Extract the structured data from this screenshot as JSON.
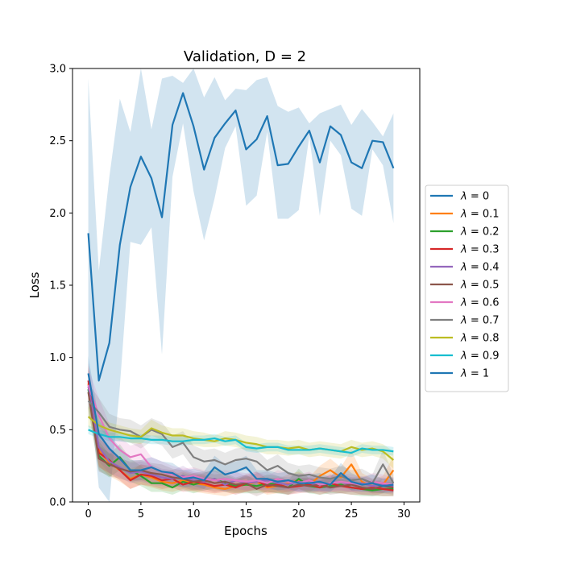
{
  "chart_data": {
    "type": "line",
    "title": "Validation, D = 2",
    "xlabel": "Epochs",
    "ylabel": "Loss",
    "xlim": [
      -1.5,
      31.5
    ],
    "ylim": [
      0.0,
      3.0
    ],
    "xticks": [
      0,
      5,
      10,
      15,
      20,
      25,
      30
    ],
    "xtick_labels": [
      "0",
      "5",
      "10",
      "15",
      "20",
      "25",
      "30"
    ],
    "yticks": [
      0.0,
      0.5,
      1.0,
      1.5,
      2.0,
      2.5,
      3.0
    ],
    "ytick_labels": [
      "0.0",
      "0.5",
      "1.0",
      "1.5",
      "2.0",
      "2.5",
      "3.0"
    ],
    "legend_position": "right-outside",
    "legend_symbol": "λ",
    "x": [
      0,
      1,
      2,
      3,
      4,
      5,
      6,
      7,
      8,
      9,
      10,
      11,
      12,
      13,
      14,
      15,
      16,
      17,
      18,
      19,
      20,
      21,
      22,
      23,
      24,
      25,
      26,
      27,
      28,
      29
    ],
    "series": [
      {
        "name": "λ = 0",
        "label_value": "0",
        "color": "#1f77b4",
        "values": [
          1.86,
          0.84,
          1.1,
          1.78,
          2.18,
          2.39,
          2.24,
          1.97,
          2.61,
          2.83,
          2.6,
          2.3,
          2.52,
          2.62,
          2.71,
          2.44,
          2.51,
          2.67,
          2.33,
          2.34,
          2.46,
          2.57,
          2.35,
          2.6,
          2.54,
          2.35,
          2.31,
          2.5,
          2.49,
          2.31
        ],
        "lower": [
          0.85,
          0.1,
          0.0,
          0.8,
          1.8,
          1.78,
          1.9,
          1.02,
          2.25,
          2.62,
          2.15,
          1.81,
          2.1,
          2.45,
          2.6,
          2.05,
          2.12,
          2.56,
          1.96,
          1.96,
          2.02,
          2.53,
          1.98,
          2.5,
          2.4,
          2.03,
          1.98,
          2.44,
          2.33,
          1.93
        ],
        "upper": [
          2.93,
          1.6,
          2.25,
          2.79,
          2.56,
          3.0,
          2.58,
          2.93,
          2.95,
          2.9,
          3.03,
          2.8,
          2.94,
          2.78,
          2.86,
          2.85,
          2.92,
          2.94,
          2.74,
          2.7,
          2.73,
          2.62,
          2.69,
          2.72,
          2.75,
          2.61,
          2.72,
          2.63,
          2.53,
          2.69
        ]
      },
      {
        "name": "λ = 0.1",
        "label_value": "0.1",
        "color": "#ff7f0e",
        "values": [
          0.82,
          0.36,
          0.27,
          0.22,
          0.16,
          0.19,
          0.17,
          0.14,
          0.13,
          0.15,
          0.13,
          0.12,
          0.1,
          0.09,
          0.11,
          0.12,
          0.14,
          0.1,
          0.11,
          0.13,
          0.15,
          0.12,
          0.18,
          0.22,
          0.17,
          0.26,
          0.14,
          0.11,
          0.12,
          0.22
        ],
        "lower": [
          0.7,
          0.25,
          0.18,
          0.14,
          0.09,
          0.12,
          0.1,
          0.08,
          0.07,
          0.09,
          0.07,
          0.06,
          0.05,
          0.04,
          0.06,
          0.07,
          0.08,
          0.05,
          0.06,
          0.07,
          0.09,
          0.07,
          0.11,
          0.14,
          0.1,
          0.16,
          0.08,
          0.06,
          0.06,
          0.12
        ],
        "upper": [
          0.94,
          0.47,
          0.36,
          0.3,
          0.23,
          0.26,
          0.24,
          0.2,
          0.19,
          0.21,
          0.19,
          0.18,
          0.15,
          0.14,
          0.16,
          0.17,
          0.2,
          0.15,
          0.16,
          0.19,
          0.21,
          0.17,
          0.25,
          0.3,
          0.24,
          0.36,
          0.2,
          0.16,
          0.18,
          0.32
        ]
      },
      {
        "name": "λ = 0.2",
        "label_value": "0.2",
        "color": "#2ca02c",
        "values": [
          0.78,
          0.32,
          0.25,
          0.31,
          0.22,
          0.18,
          0.13,
          0.13,
          0.1,
          0.14,
          0.12,
          0.14,
          0.16,
          0.13,
          0.11,
          0.12,
          0.11,
          0.13,
          0.12,
          0.1,
          0.16,
          0.11,
          0.1,
          0.11,
          0.12,
          0.1,
          0.09,
          0.08,
          0.09,
          0.09
        ],
        "lower": [
          0.65,
          0.22,
          0.17,
          0.22,
          0.14,
          0.11,
          0.07,
          0.07,
          0.05,
          0.08,
          0.06,
          0.08,
          0.09,
          0.07,
          0.06,
          0.06,
          0.06,
          0.07,
          0.06,
          0.05,
          0.09,
          0.06,
          0.05,
          0.06,
          0.06,
          0.05,
          0.04,
          0.04,
          0.04,
          0.04
        ],
        "upper": [
          0.91,
          0.42,
          0.33,
          0.4,
          0.3,
          0.25,
          0.19,
          0.19,
          0.15,
          0.2,
          0.18,
          0.2,
          0.23,
          0.19,
          0.16,
          0.18,
          0.16,
          0.19,
          0.18,
          0.15,
          0.23,
          0.16,
          0.15,
          0.16,
          0.18,
          0.15,
          0.14,
          0.12,
          0.14,
          0.14
        ]
      },
      {
        "name": "λ = 0.3",
        "label_value": "0.3",
        "color": "#d62728",
        "values": [
          0.84,
          0.34,
          0.29,
          0.22,
          0.15,
          0.19,
          0.18,
          0.15,
          0.16,
          0.12,
          0.14,
          0.13,
          0.11,
          0.12,
          0.1,
          0.13,
          0.15,
          0.11,
          0.12,
          0.1,
          0.11,
          0.12,
          0.1,
          0.13,
          0.11,
          0.1,
          0.09,
          0.1,
          0.09,
          0.08
        ],
        "lower": [
          0.72,
          0.24,
          0.2,
          0.15,
          0.09,
          0.12,
          0.11,
          0.09,
          0.1,
          0.07,
          0.08,
          0.07,
          0.06,
          0.07,
          0.05,
          0.07,
          0.09,
          0.06,
          0.07,
          0.05,
          0.06,
          0.07,
          0.05,
          0.07,
          0.06,
          0.05,
          0.05,
          0.05,
          0.04,
          0.04
        ],
        "upper": [
          0.96,
          0.44,
          0.38,
          0.29,
          0.21,
          0.26,
          0.25,
          0.21,
          0.22,
          0.17,
          0.2,
          0.19,
          0.16,
          0.17,
          0.15,
          0.19,
          0.21,
          0.16,
          0.17,
          0.15,
          0.16,
          0.17,
          0.15,
          0.19,
          0.16,
          0.15,
          0.13,
          0.15,
          0.14,
          0.12
        ]
      },
      {
        "name": "λ = 0.4",
        "label_value": "0.4",
        "color": "#9467bd",
        "values": [
          0.8,
          0.38,
          0.28,
          0.24,
          0.2,
          0.21,
          0.19,
          0.17,
          0.16,
          0.18,
          0.15,
          0.14,
          0.16,
          0.12,
          0.15,
          0.13,
          0.14,
          0.15,
          0.13,
          0.12,
          0.14,
          0.13,
          0.12,
          0.13,
          0.14,
          0.12,
          0.13,
          0.11,
          0.12,
          0.11
        ],
        "lower": [
          0.68,
          0.28,
          0.2,
          0.17,
          0.13,
          0.14,
          0.12,
          0.11,
          0.1,
          0.11,
          0.09,
          0.08,
          0.1,
          0.07,
          0.09,
          0.08,
          0.08,
          0.09,
          0.08,
          0.07,
          0.08,
          0.08,
          0.07,
          0.08,
          0.08,
          0.07,
          0.08,
          0.06,
          0.07,
          0.06
        ],
        "upper": [
          0.92,
          0.48,
          0.36,
          0.31,
          0.27,
          0.28,
          0.26,
          0.23,
          0.22,
          0.25,
          0.21,
          0.2,
          0.22,
          0.17,
          0.21,
          0.18,
          0.2,
          0.21,
          0.18,
          0.17,
          0.2,
          0.18,
          0.17,
          0.18,
          0.2,
          0.17,
          0.18,
          0.16,
          0.17,
          0.16
        ]
      },
      {
        "name": "λ = 0.5",
        "label_value": "0.5",
        "color": "#8c564b",
        "values": [
          0.76,
          0.3,
          0.26,
          0.23,
          0.21,
          0.22,
          0.2,
          0.19,
          0.17,
          0.16,
          0.14,
          0.15,
          0.13,
          0.14,
          0.12,
          0.13,
          0.09,
          0.12,
          0.11,
          0.1,
          0.12,
          0.11,
          0.12,
          0.1,
          0.11,
          0.12,
          0.1,
          0.09,
          0.11,
          0.1
        ],
        "lower": [
          0.64,
          0.21,
          0.18,
          0.16,
          0.14,
          0.15,
          0.13,
          0.12,
          0.11,
          0.1,
          0.08,
          0.09,
          0.07,
          0.08,
          0.07,
          0.07,
          0.04,
          0.07,
          0.06,
          0.05,
          0.07,
          0.06,
          0.07,
          0.05,
          0.06,
          0.07,
          0.05,
          0.04,
          0.06,
          0.05
        ],
        "upper": [
          0.88,
          0.39,
          0.34,
          0.3,
          0.28,
          0.29,
          0.27,
          0.26,
          0.23,
          0.22,
          0.2,
          0.21,
          0.19,
          0.2,
          0.17,
          0.19,
          0.14,
          0.17,
          0.16,
          0.15,
          0.17,
          0.16,
          0.17,
          0.15,
          0.16,
          0.17,
          0.15,
          0.14,
          0.16,
          0.15
        ]
      },
      {
        "name": "λ = 0.6",
        "label_value": "0.6",
        "color": "#e377c2",
        "values": [
          0.81,
          0.6,
          0.44,
          0.36,
          0.31,
          0.33,
          0.24,
          0.21,
          0.19,
          0.17,
          0.18,
          0.16,
          0.15,
          0.16,
          0.15,
          0.14,
          0.15,
          0.13,
          0.16,
          0.14,
          0.13,
          0.15,
          0.12,
          0.13,
          0.14,
          0.13,
          0.12,
          0.14,
          0.13,
          0.12
        ],
        "lower": [
          0.69,
          0.48,
          0.34,
          0.27,
          0.23,
          0.25,
          0.17,
          0.14,
          0.13,
          0.11,
          0.12,
          0.1,
          0.09,
          0.1,
          0.09,
          0.08,
          0.09,
          0.08,
          0.1,
          0.08,
          0.07,
          0.09,
          0.07,
          0.07,
          0.08,
          0.07,
          0.07,
          0.08,
          0.07,
          0.07
        ],
        "upper": [
          0.93,
          0.72,
          0.54,
          0.45,
          0.39,
          0.41,
          0.31,
          0.28,
          0.25,
          0.23,
          0.24,
          0.22,
          0.21,
          0.22,
          0.21,
          0.2,
          0.21,
          0.18,
          0.22,
          0.2,
          0.19,
          0.21,
          0.17,
          0.19,
          0.2,
          0.19,
          0.17,
          0.2,
          0.19,
          0.17
        ]
      },
      {
        "name": "λ = 0.7",
        "label_value": "0.7",
        "color": "#7f7f7f",
        "values": [
          0.7,
          0.62,
          0.52,
          0.5,
          0.49,
          0.45,
          0.5,
          0.47,
          0.38,
          0.41,
          0.31,
          0.28,
          0.29,
          0.26,
          0.29,
          0.3,
          0.28,
          0.22,
          0.25,
          0.2,
          0.18,
          0.19,
          0.17,
          0.16,
          0.18,
          0.15,
          0.16,
          0.13,
          0.26,
          0.13
        ],
        "lower": [
          0.58,
          0.52,
          0.43,
          0.42,
          0.41,
          0.37,
          0.42,
          0.39,
          0.3,
          0.33,
          0.23,
          0.2,
          0.21,
          0.18,
          0.21,
          0.22,
          0.2,
          0.15,
          0.17,
          0.13,
          0.11,
          0.12,
          0.1,
          0.09,
          0.11,
          0.08,
          0.09,
          0.07,
          0.16,
          0.07
        ],
        "upper": [
          0.82,
          0.72,
          0.61,
          0.58,
          0.57,
          0.53,
          0.58,
          0.55,
          0.46,
          0.49,
          0.39,
          0.36,
          0.37,
          0.34,
          0.37,
          0.38,
          0.36,
          0.29,
          0.33,
          0.27,
          0.25,
          0.26,
          0.24,
          0.23,
          0.25,
          0.22,
          0.23,
          0.19,
          0.36,
          0.19
        ]
      },
      {
        "name": "λ = 0.8",
        "label_value": "0.8",
        "color": "#bcbd22",
        "values": [
          0.59,
          0.53,
          0.5,
          0.48,
          0.46,
          0.45,
          0.51,
          0.48,
          0.46,
          0.46,
          0.44,
          0.43,
          0.42,
          0.44,
          0.43,
          0.41,
          0.4,
          0.38,
          0.38,
          0.37,
          0.38,
          0.36,
          0.37,
          0.36,
          0.35,
          0.38,
          0.36,
          0.37,
          0.35,
          0.29
        ],
        "lower": [
          0.52,
          0.47,
          0.45,
          0.43,
          0.41,
          0.4,
          0.46,
          0.43,
          0.41,
          0.41,
          0.39,
          0.38,
          0.38,
          0.39,
          0.38,
          0.36,
          0.35,
          0.33,
          0.33,
          0.32,
          0.33,
          0.31,
          0.32,
          0.31,
          0.3,
          0.33,
          0.31,
          0.32,
          0.3,
          0.23
        ],
        "upper": [
          0.66,
          0.59,
          0.55,
          0.53,
          0.51,
          0.5,
          0.57,
          0.53,
          0.51,
          0.51,
          0.49,
          0.48,
          0.46,
          0.49,
          0.48,
          0.46,
          0.45,
          0.43,
          0.43,
          0.42,
          0.43,
          0.41,
          0.42,
          0.41,
          0.4,
          0.43,
          0.41,
          0.42,
          0.4,
          0.35
        ]
      },
      {
        "name": "λ = 0.9",
        "label_value": "0.9",
        "color": "#17becf",
        "values": [
          0.5,
          0.47,
          0.45,
          0.45,
          0.44,
          0.44,
          0.43,
          0.43,
          0.42,
          0.42,
          0.43,
          0.43,
          0.44,
          0.42,
          0.43,
          0.38,
          0.37,
          0.38,
          0.38,
          0.36,
          0.36,
          0.36,
          0.37,
          0.36,
          0.35,
          0.34,
          0.37,
          0.36,
          0.36,
          0.35
        ],
        "lower": [
          0.47,
          0.44,
          0.42,
          0.42,
          0.41,
          0.41,
          0.4,
          0.4,
          0.39,
          0.39,
          0.4,
          0.4,
          0.41,
          0.39,
          0.4,
          0.35,
          0.34,
          0.35,
          0.35,
          0.33,
          0.33,
          0.33,
          0.34,
          0.33,
          0.32,
          0.31,
          0.34,
          0.33,
          0.33,
          0.32
        ],
        "upper": [
          0.53,
          0.5,
          0.48,
          0.48,
          0.47,
          0.47,
          0.46,
          0.46,
          0.45,
          0.45,
          0.46,
          0.46,
          0.47,
          0.45,
          0.46,
          0.41,
          0.4,
          0.41,
          0.41,
          0.39,
          0.39,
          0.39,
          0.4,
          0.39,
          0.38,
          0.37,
          0.4,
          0.39,
          0.39,
          0.38
        ]
      },
      {
        "name": "λ = 1",
        "label_value": "1",
        "color": "#1f77b4",
        "values": [
          0.89,
          0.47,
          0.37,
          0.3,
          0.22,
          0.22,
          0.24,
          0.21,
          0.2,
          0.16,
          0.17,
          0.15,
          0.24,
          0.19,
          0.21,
          0.24,
          0.16,
          0.16,
          0.14,
          0.15,
          0.13,
          0.13,
          0.14,
          0.12,
          0.2,
          0.14,
          0.12,
          0.13,
          0.11,
          0.12
        ],
        "lower": [
          0.77,
          0.37,
          0.28,
          0.22,
          0.15,
          0.15,
          0.17,
          0.14,
          0.13,
          0.1,
          0.11,
          0.09,
          0.16,
          0.12,
          0.14,
          0.16,
          0.1,
          0.1,
          0.08,
          0.09,
          0.07,
          0.07,
          0.08,
          0.07,
          0.13,
          0.08,
          0.07,
          0.07,
          0.06,
          0.07
        ],
        "upper": [
          1.01,
          0.57,
          0.46,
          0.38,
          0.29,
          0.29,
          0.31,
          0.28,
          0.27,
          0.22,
          0.23,
          0.21,
          0.32,
          0.26,
          0.28,
          0.32,
          0.22,
          0.22,
          0.2,
          0.21,
          0.19,
          0.19,
          0.2,
          0.17,
          0.27,
          0.2,
          0.17,
          0.19,
          0.16,
          0.17
        ]
      }
    ]
  }
}
